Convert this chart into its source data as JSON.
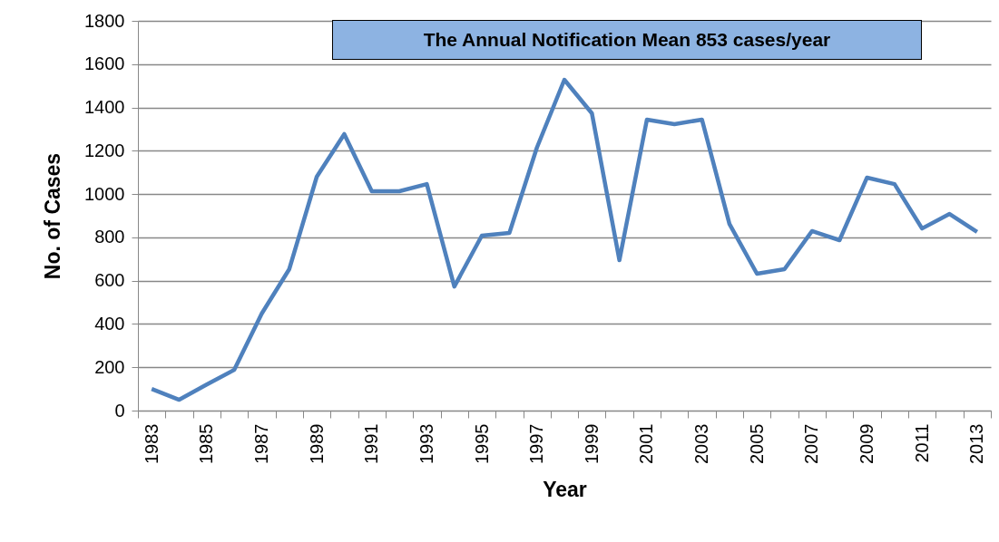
{
  "chart_data": {
    "type": "line",
    "xlabel": "Year",
    "ylabel": "No. of Cases",
    "categories": [
      "1983",
      null,
      "1985",
      null,
      "1987",
      null,
      "1989",
      null,
      "1991",
      null,
      "1993",
      null,
      "1995",
      null,
      "1997",
      null,
      "1999",
      null,
      "2001",
      null,
      "2003",
      null,
      "2005",
      null,
      "2007",
      null,
      "2009",
      null,
      "2011",
      null,
      "2013"
    ],
    "values": [
      100,
      50,
      120,
      188,
      448,
      653,
      1080,
      1277,
      1013,
      1013,
      1046,
      573,
      808,
      820,
      1214,
      1528,
      1373,
      695,
      1344,
      1323,
      1344,
      862,
      632,
      653,
      829,
      787,
      1076,
      1046,
      841,
      908,
      825
    ],
    "color": "#4f81bd",
    "line_style": "solid",
    "ylim": [
      0,
      1800
    ],
    "yticks": [
      0,
      200,
      400,
      600,
      800,
      1000,
      1200,
      1400,
      1600,
      1800
    ],
    "grid": "y",
    "annotations": [
      "The Annual Notification Mean 853 cases/year"
    ]
  }
}
